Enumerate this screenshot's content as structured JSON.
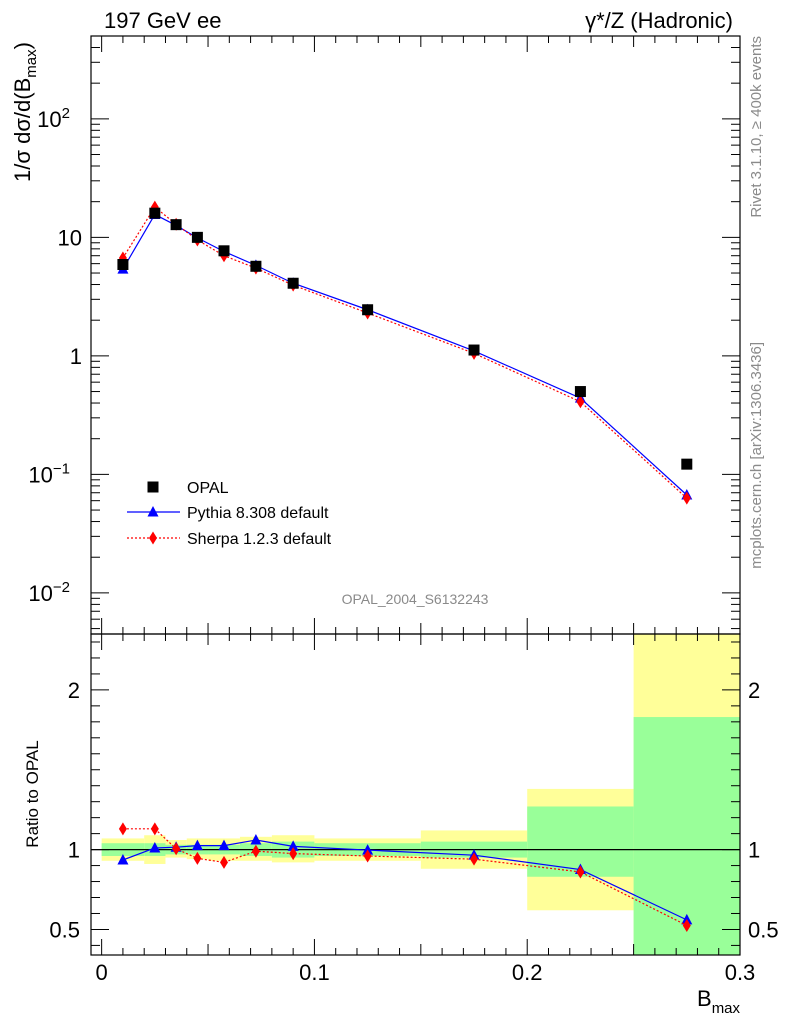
{
  "header": {
    "left_label": "197 GeV ee",
    "right_label": "γ*/Z (Hadronic)"
  },
  "side_labels": {
    "rivet": "Rivet 3.1.10, ≥ 400k events",
    "mcplots": "mcplots.cern.ch [arXiv:1306.3436]"
  },
  "analysis_label": "OPAL_2004_S6132243",
  "colors": {
    "data": "#000000",
    "pythia": "#0000ff",
    "sherpa": "#ff0000",
    "band_inner": "#99ff99",
    "band_outer": "#ffff99"
  },
  "chart_data": [
    {
      "type": "scatter",
      "panel": "main",
      "ylabel": "1/σ dσ/d(B_max)",
      "xlim": [
        -0.005,
        0.3
      ],
      "ylim": [
        0.0045,
        500
      ],
      "y_scale": "log",
      "y_ticks": [
        {
          "value": 0.01,
          "label": "10",
          "sup": "−2"
        },
        {
          "value": 0.1,
          "label": "10",
          "sup": "−1"
        },
        {
          "value": 1,
          "label": "1",
          "sup": ""
        },
        {
          "value": 10,
          "label": "10",
          "sup": ""
        },
        {
          "value": 100,
          "label": "10",
          "sup": "2"
        }
      ],
      "legend_position": "bottom-left",
      "series": [
        {
          "name": "OPAL",
          "key": "data",
          "marker": "square",
          "x": [
            0.01,
            0.025,
            0.035,
            0.045,
            0.0575,
            0.0725,
            0.09,
            0.125,
            0.175,
            0.225,
            0.275
          ],
          "values": [
            5.9,
            16.0,
            12.8,
            10.0,
            7.7,
            5.7,
            4.1,
            2.45,
            1.12,
            0.5,
            0.122
          ]
        },
        {
          "name": "Pythia 8.308 default",
          "key": "pythia",
          "marker": "triangle",
          "line": "solid",
          "x": [
            0.01,
            0.025,
            0.035,
            0.045,
            0.0575,
            0.0725,
            0.09,
            0.125,
            0.175,
            0.225,
            0.275
          ],
          "values": [
            5.4,
            15.6,
            12.6,
            9.9,
            7.6,
            5.8,
            4.1,
            2.45,
            1.1,
            0.44,
            0.067
          ]
        },
        {
          "name": "Sherpa 1.2.3 default",
          "key": "sherpa",
          "marker": "diamond",
          "line": "dotted",
          "x": [
            0.01,
            0.025,
            0.035,
            0.045,
            0.0575,
            0.0725,
            0.09,
            0.125,
            0.175,
            0.225,
            0.275
          ],
          "values": [
            6.7,
            18.0,
            12.9,
            9.5,
            7.0,
            5.5,
            3.95,
            2.3,
            1.05,
            0.41,
            0.063
          ]
        }
      ]
    },
    {
      "type": "line",
      "panel": "ratio",
      "ylabel": "Ratio to OPAL",
      "xlabel": "B_max",
      "xlim": [
        -0.005,
        0.3
      ],
      "ylim": [
        0.34,
        2.35
      ],
      "y_scale": "linear",
      "y_ticks": [
        0.5,
        1,
        2
      ],
      "x_ticks": [
        0,
        0.1,
        0.2,
        0.3
      ],
      "bands": {
        "edges": [
          0,
          0.02,
          0.03,
          0.04,
          0.05,
          0.065,
          0.08,
          0.1,
          0.15,
          0.2,
          0.25,
          0.3
        ],
        "inner_low": [
          0.96,
          0.96,
          0.97,
          0.97,
          0.97,
          0.96,
          0.95,
          0.96,
          0.95,
          0.83,
          0.34
        ],
        "inner_high": [
          1.04,
          1.04,
          1.03,
          1.03,
          1.03,
          1.04,
          1.05,
          1.04,
          1.05,
          1.27,
          1.83
        ],
        "outer_low": [
          0.93,
          0.91,
          0.95,
          0.94,
          0.93,
          0.93,
          0.92,
          0.93,
          0.88,
          0.62,
          0.34
        ],
        "outer_high": [
          1.07,
          1.09,
          1.06,
          1.07,
          1.07,
          1.08,
          1.09,
          1.07,
          1.12,
          1.38,
          2.35
        ]
      },
      "series": [
        {
          "name": "Pythia 8.308 default",
          "key": "pythia",
          "marker": "triangle",
          "line": "solid",
          "x": [
            0.01,
            0.025,
            0.035,
            0.045,
            0.0575,
            0.0725,
            0.09,
            0.125,
            0.175,
            0.225,
            0.275
          ],
          "values": [
            0.935,
            1.01,
            1.015,
            1.025,
            1.025,
            1.06,
            1.02,
            0.997,
            0.965,
            0.875,
            0.56
          ]
        },
        {
          "name": "Sherpa 1.2.3 default",
          "key": "sherpa",
          "marker": "diamond",
          "line": "dotted",
          "x": [
            0.01,
            0.025,
            0.035,
            0.045,
            0.0575,
            0.0725,
            0.09,
            0.125,
            0.175,
            0.225,
            0.275
          ],
          "values": [
            1.13,
            1.13,
            1.005,
            0.945,
            0.92,
            0.99,
            0.975,
            0.96,
            0.94,
            0.86,
            0.525
          ]
        }
      ]
    }
  ]
}
